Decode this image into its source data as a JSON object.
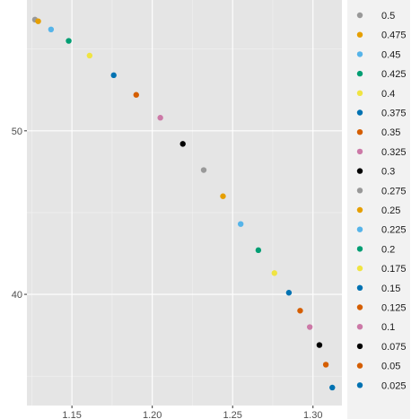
{
  "chart_data": {
    "type": "scatter",
    "title": "",
    "xlabel": "",
    "ylabel": "",
    "xlim": [
      1.122,
      1.318
    ],
    "ylim": [
      33.2,
      58.0
    ],
    "x_ticks": [
      1.15,
      1.2,
      1.25,
      1.3
    ],
    "x_tick_labels": [
      "1.15",
      "1.20",
      "1.25",
      "1.30"
    ],
    "y_ticks": [
      40,
      50
    ],
    "y_tick_labels": [
      "40",
      "50"
    ],
    "grid": true,
    "legend_position": "right",
    "background": "#e5e5e5",
    "points": [
      {
        "x": 1.127,
        "y": 56.8,
        "label": "0.5",
        "color": "#999999"
      },
      {
        "x": 1.129,
        "y": 56.7,
        "label": "0.475",
        "color": "#e69f00"
      },
      {
        "x": 1.137,
        "y": 56.2,
        "label": "0.45",
        "color": "#56b4e9"
      },
      {
        "x": 1.148,
        "y": 55.5,
        "label": "0.425",
        "color": "#009e73"
      },
      {
        "x": 1.161,
        "y": 54.6,
        "label": "0.4",
        "color": "#f0e442"
      },
      {
        "x": 1.176,
        "y": 53.4,
        "label": "0.375",
        "color": "#0072b2"
      },
      {
        "x": 1.19,
        "y": 52.2,
        "label": "0.35",
        "color": "#d55e00"
      },
      {
        "x": 1.205,
        "y": 50.8,
        "label": "0.325",
        "color": "#cc79a7"
      },
      {
        "x": 1.219,
        "y": 49.2,
        "label": "0.3",
        "color": "#000000"
      },
      {
        "x": 1.232,
        "y": 47.6,
        "label": "0.275",
        "color": "#999999"
      },
      {
        "x": 1.244,
        "y": 46.0,
        "label": "0.25",
        "color": "#e69f00"
      },
      {
        "x": 1.255,
        "y": 44.3,
        "label": "0.225",
        "color": "#56b4e9"
      },
      {
        "x": 1.266,
        "y": 42.7,
        "label": "0.2",
        "color": "#009e73"
      },
      {
        "x": 1.276,
        "y": 41.3,
        "label": "0.175",
        "color": "#f0e442"
      },
      {
        "x": 1.285,
        "y": 40.1,
        "label": "0.15",
        "color": "#0072b2"
      },
      {
        "x": 1.292,
        "y": 39.0,
        "label": "0.125",
        "color": "#d55e00"
      },
      {
        "x": 1.298,
        "y": 38.0,
        "label": "0.1",
        "color": "#cc79a7"
      },
      {
        "x": 1.304,
        "y": 36.9,
        "label": "0.075",
        "color": "#000000"
      },
      {
        "x": 1.308,
        "y": 35.7,
        "label": "0.05",
        "color": "#d55e00"
      },
      {
        "x": 1.312,
        "y": 34.3,
        "label": "0.025",
        "color": "#0072b2"
      }
    ]
  }
}
